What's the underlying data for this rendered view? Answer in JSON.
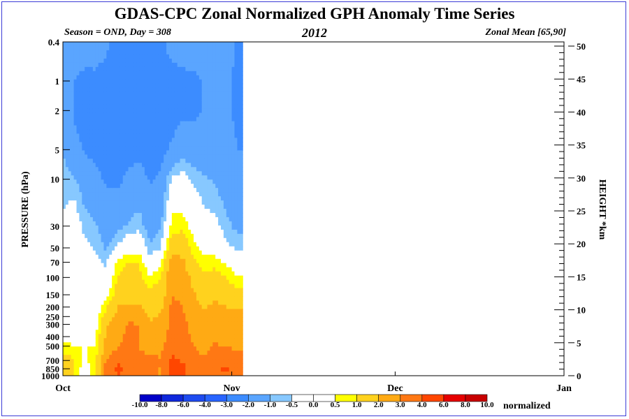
{
  "title": "GDAS-CPC Zonal Normalized GPH Anomaly Time Series",
  "subtitle_left": "Season = OND, Day = 308",
  "subtitle_center": "2012",
  "subtitle_right": "Zonal Mean [65,90]",
  "chart_data": {
    "type": "heatmap",
    "title": "GDAS-CPC Zonal Normalized GPH Anomaly Time Series",
    "ylabel_left": "PRESSURE (hPa)",
    "ylabel_right": "HEIGHT *km",
    "x_tick_labels": [
      "Oct",
      "Nov",
      "Dec",
      "Jan"
    ],
    "y_left_tick_labels": [
      "0.4",
      "1",
      "2",
      "5",
      "10",
      "30",
      "50",
      "70",
      "100",
      "150",
      "200",
      "250",
      "300",
      "400",
      "500",
      "700",
      "850",
      "1000"
    ],
    "y_right_tick_labels": [
      "0",
      "5",
      "10",
      "15",
      "20",
      "25",
      "30",
      "35",
      "40",
      "45",
      "50"
    ],
    "data_end_day": 33,
    "legend": {
      "unit_label": "normalized",
      "labels": [
        "-10.0",
        "-8.0",
        "-6.0",
        "-4.0",
        "-3.0",
        "-2.0",
        "-1.0",
        "-0.5",
        "0.0",
        "0.5",
        "1.0",
        "2.0",
        "3.0",
        "4.0",
        "6.0",
        "8.0",
        "10.0"
      ],
      "colors": [
        "#0000c8",
        "#0f28dc",
        "#1e4bf0",
        "#2864ff",
        "#3c8cff",
        "#5aa5ff",
        "#87c8ff",
        "#ffffff",
        "#ffffff",
        "#ffff00",
        "#ffd21e",
        "#ffaa14",
        "#ff7814",
        "#ff4600",
        "#e60000",
        "#c80000"
      ]
    },
    "profiles": [
      {
        "day": 0,
        "pressures": [
          0.4,
          1,
          2,
          5,
          10,
          30,
          50,
          70,
          100,
          150,
          200,
          300,
          500,
          700,
          850,
          1000
        ],
        "values": [
          -1.2,
          -1.4,
          -1.3,
          -1.0,
          -0.8,
          -0.4,
          -0.2,
          -0.1,
          -0.1,
          -0.2,
          0.0,
          0.2,
          0.6,
          1.5,
          1.8,
          1.6
        ]
      },
      {
        "day": 2,
        "pressures": [
          0.4,
          1,
          2,
          5,
          10,
          30,
          50,
          70,
          100,
          150,
          200,
          300,
          500,
          700,
          850,
          1000
        ],
        "values": [
          -1.3,
          -2.0,
          -2.1,
          -1.7,
          -0.9,
          0.1,
          0.2,
          0.1,
          0.0,
          -0.2,
          -0.1,
          0.2,
          0.5,
          1.0,
          1.1,
          1.0
        ]
      },
      {
        "day": 4,
        "pressures": [
          0.4,
          1,
          2,
          5,
          10,
          30,
          50,
          70,
          100,
          150,
          200,
          300,
          500,
          700,
          850,
          1000
        ],
        "values": [
          -1.4,
          -2.3,
          -2.4,
          -2.1,
          -1.5,
          -0.7,
          -0.3,
          -0.2,
          -0.1,
          0.0,
          0.1,
          0.3,
          0.5,
          0.4,
          0.1,
          0.0
        ]
      },
      {
        "day": 6,
        "pressures": [
          0.4,
          1,
          2,
          5,
          10,
          30,
          50,
          70,
          100,
          150,
          200,
          300,
          500,
          700,
          850,
          1000
        ],
        "values": [
          -1.5,
          -2.2,
          -2.4,
          -2.2,
          -1.8,
          -0.9,
          -0.6,
          -0.3,
          -0.2,
          0.0,
          0.0,
          0.2,
          0.5,
          1.0,
          0.9,
          0.8
        ]
      },
      {
        "day": 8,
        "pressures": [
          0.4,
          1,
          2,
          5,
          10,
          30,
          50,
          70,
          100,
          150,
          200,
          300,
          500,
          700,
          850,
          1000
        ],
        "values": [
          -1.8,
          -2.4,
          -2.5,
          -2.4,
          -2.1,
          -1.4,
          -1.1,
          -0.6,
          -0.3,
          0.2,
          0.9,
          1.9,
          2.4,
          3.0,
          3.6,
          3.3
        ]
      },
      {
        "day": 10,
        "pressures": [
          0.4,
          1,
          2,
          5,
          10,
          30,
          50,
          70,
          100,
          150,
          200,
          300,
          500,
          700,
          850,
          1000
        ],
        "values": [
          -2.4,
          -2.6,
          -2.7,
          -2.6,
          -2.2,
          -1.3,
          -0.3,
          0.6,
          1.0,
          1.4,
          2.0,
          2.5,
          2.8,
          3.9,
          4.2,
          4.0
        ]
      },
      {
        "day": 12,
        "pressures": [
          0.4,
          1,
          2,
          5,
          10,
          30,
          50,
          70,
          100,
          150,
          200,
          300,
          500,
          700,
          850,
          1000
        ],
        "values": [
          -2.2,
          -2.5,
          -2.6,
          -2.4,
          -1.8,
          -0.9,
          0.1,
          1.1,
          1.3,
          1.5,
          2.1,
          3.1,
          3.4,
          3.6,
          3.8,
          3.7
        ]
      },
      {
        "day": 14,
        "pressures": [
          0.4,
          1,
          2,
          5,
          10,
          30,
          50,
          70,
          100,
          150,
          200,
          300,
          500,
          700,
          850,
          1000
        ],
        "values": [
          -2.0,
          -2.4,
          -2.5,
          -2.3,
          -1.6,
          -0.7,
          0.2,
          1.0,
          1.2,
          1.6,
          2.2,
          3.0,
          3.0,
          3.2,
          3.3,
          3.1
        ]
      },
      {
        "day": 16,
        "pressures": [
          0.4,
          1,
          2,
          5,
          10,
          30,
          50,
          70,
          100,
          150,
          200,
          300,
          500,
          700,
          850,
          1000
        ],
        "values": [
          -2.1,
          -2.5,
          -2.6,
          -2.5,
          -2.1,
          -1.4,
          -0.9,
          -0.2,
          0.6,
          1.2,
          1.5,
          2.1,
          2.3,
          3.6,
          3.7,
          3.5
        ]
      },
      {
        "day": 18,
        "pressures": [
          0.4,
          1,
          2,
          5,
          10,
          30,
          50,
          70,
          100,
          150,
          200,
          300,
          500,
          700,
          850,
          1000
        ],
        "values": [
          -2.2,
          -2.6,
          -2.7,
          -2.4,
          -1.8,
          -1.1,
          -0.5,
          0.4,
          1.0,
          1.4,
          1.8,
          2.3,
          2.8,
          3.0,
          2.9,
          2.8
        ]
      },
      {
        "day": 20,
        "pressures": [
          0.4,
          1,
          2,
          5,
          10,
          30,
          50,
          70,
          100,
          150,
          200,
          300,
          500,
          700,
          850,
          1000
        ],
        "values": [
          -1.6,
          -2.4,
          -2.5,
          -1.8,
          -0.4,
          0.8,
          1.5,
          2.4,
          2.9,
          3.0,
          3.2,
          3.3,
          3.6,
          4.2,
          4.5,
          4.3
        ]
      },
      {
        "day": 22,
        "pressures": [
          0.4,
          1,
          2,
          5,
          10,
          30,
          50,
          70,
          100,
          150,
          200,
          300,
          500,
          700,
          850,
          1000
        ],
        "values": [
          -1.4,
          -2.3,
          -2.2,
          -1.4,
          -0.2,
          0.8,
          1.6,
          2.2,
          2.5,
          2.8,
          3.0,
          3.2,
          3.5,
          3.9,
          4.4,
          4.1
        ]
      },
      {
        "day": 24,
        "pressures": [
          0.4,
          1,
          2,
          5,
          10,
          30,
          50,
          70,
          100,
          150,
          200,
          300,
          500,
          700,
          850,
          1000
        ],
        "values": [
          -1.4,
          -2.2,
          -2.2,
          -1.6,
          -0.6,
          0.2,
          0.7,
          1.2,
          1.7,
          2.1,
          2.4,
          2.7,
          3.0,
          3.2,
          3.3,
          3.1
        ]
      },
      {
        "day": 26,
        "pressures": [
          0.4,
          1,
          2,
          5,
          10,
          30,
          50,
          70,
          100,
          150,
          200,
          300,
          500,
          700,
          850,
          1000
        ],
        "values": [
          -1.3,
          -1.9,
          -1.9,
          -1.6,
          -0.9,
          -0.2,
          0.3,
          0.7,
          1.1,
          1.5,
          1.9,
          2.3,
          2.7,
          3.1,
          3.3,
          3.0
        ]
      },
      {
        "day": 28,
        "pressures": [
          0.4,
          1,
          2,
          5,
          10,
          30,
          50,
          70,
          100,
          150,
          200,
          300,
          500,
          700,
          850,
          1000
        ],
        "values": [
          -1.7,
          -2.0,
          -2.0,
          -1.6,
          -1.1,
          -0.3,
          0.2,
          0.7,
          1.4,
          1.8,
          2.2,
          2.6,
          3.1,
          3.6,
          3.9,
          3.6
        ]
      },
      {
        "day": 30,
        "pressures": [
          0.4,
          1,
          2,
          5,
          10,
          30,
          50,
          70,
          100,
          150,
          200,
          300,
          500,
          700,
          850,
          1000
        ],
        "values": [
          -1.7,
          -1.9,
          -1.9,
          -1.8,
          -1.5,
          -0.8,
          -0.3,
          0.4,
          1.0,
          1.5,
          2.0,
          2.4,
          2.9,
          3.8,
          4.2,
          3.7
        ]
      },
      {
        "day": 32,
        "pressures": [
          0.4,
          1,
          2,
          5,
          10,
          30,
          50,
          70,
          100,
          150,
          200,
          300,
          500,
          700,
          850,
          1000
        ],
        "values": [
          -2.1,
          -2.1,
          -2.1,
          -2.0,
          -1.5,
          -1.2,
          -0.6,
          -0.1,
          0.6,
          1.3,
          1.9,
          2.4,
          2.9,
          3.2,
          3.5,
          3.2
        ]
      }
    ]
  }
}
